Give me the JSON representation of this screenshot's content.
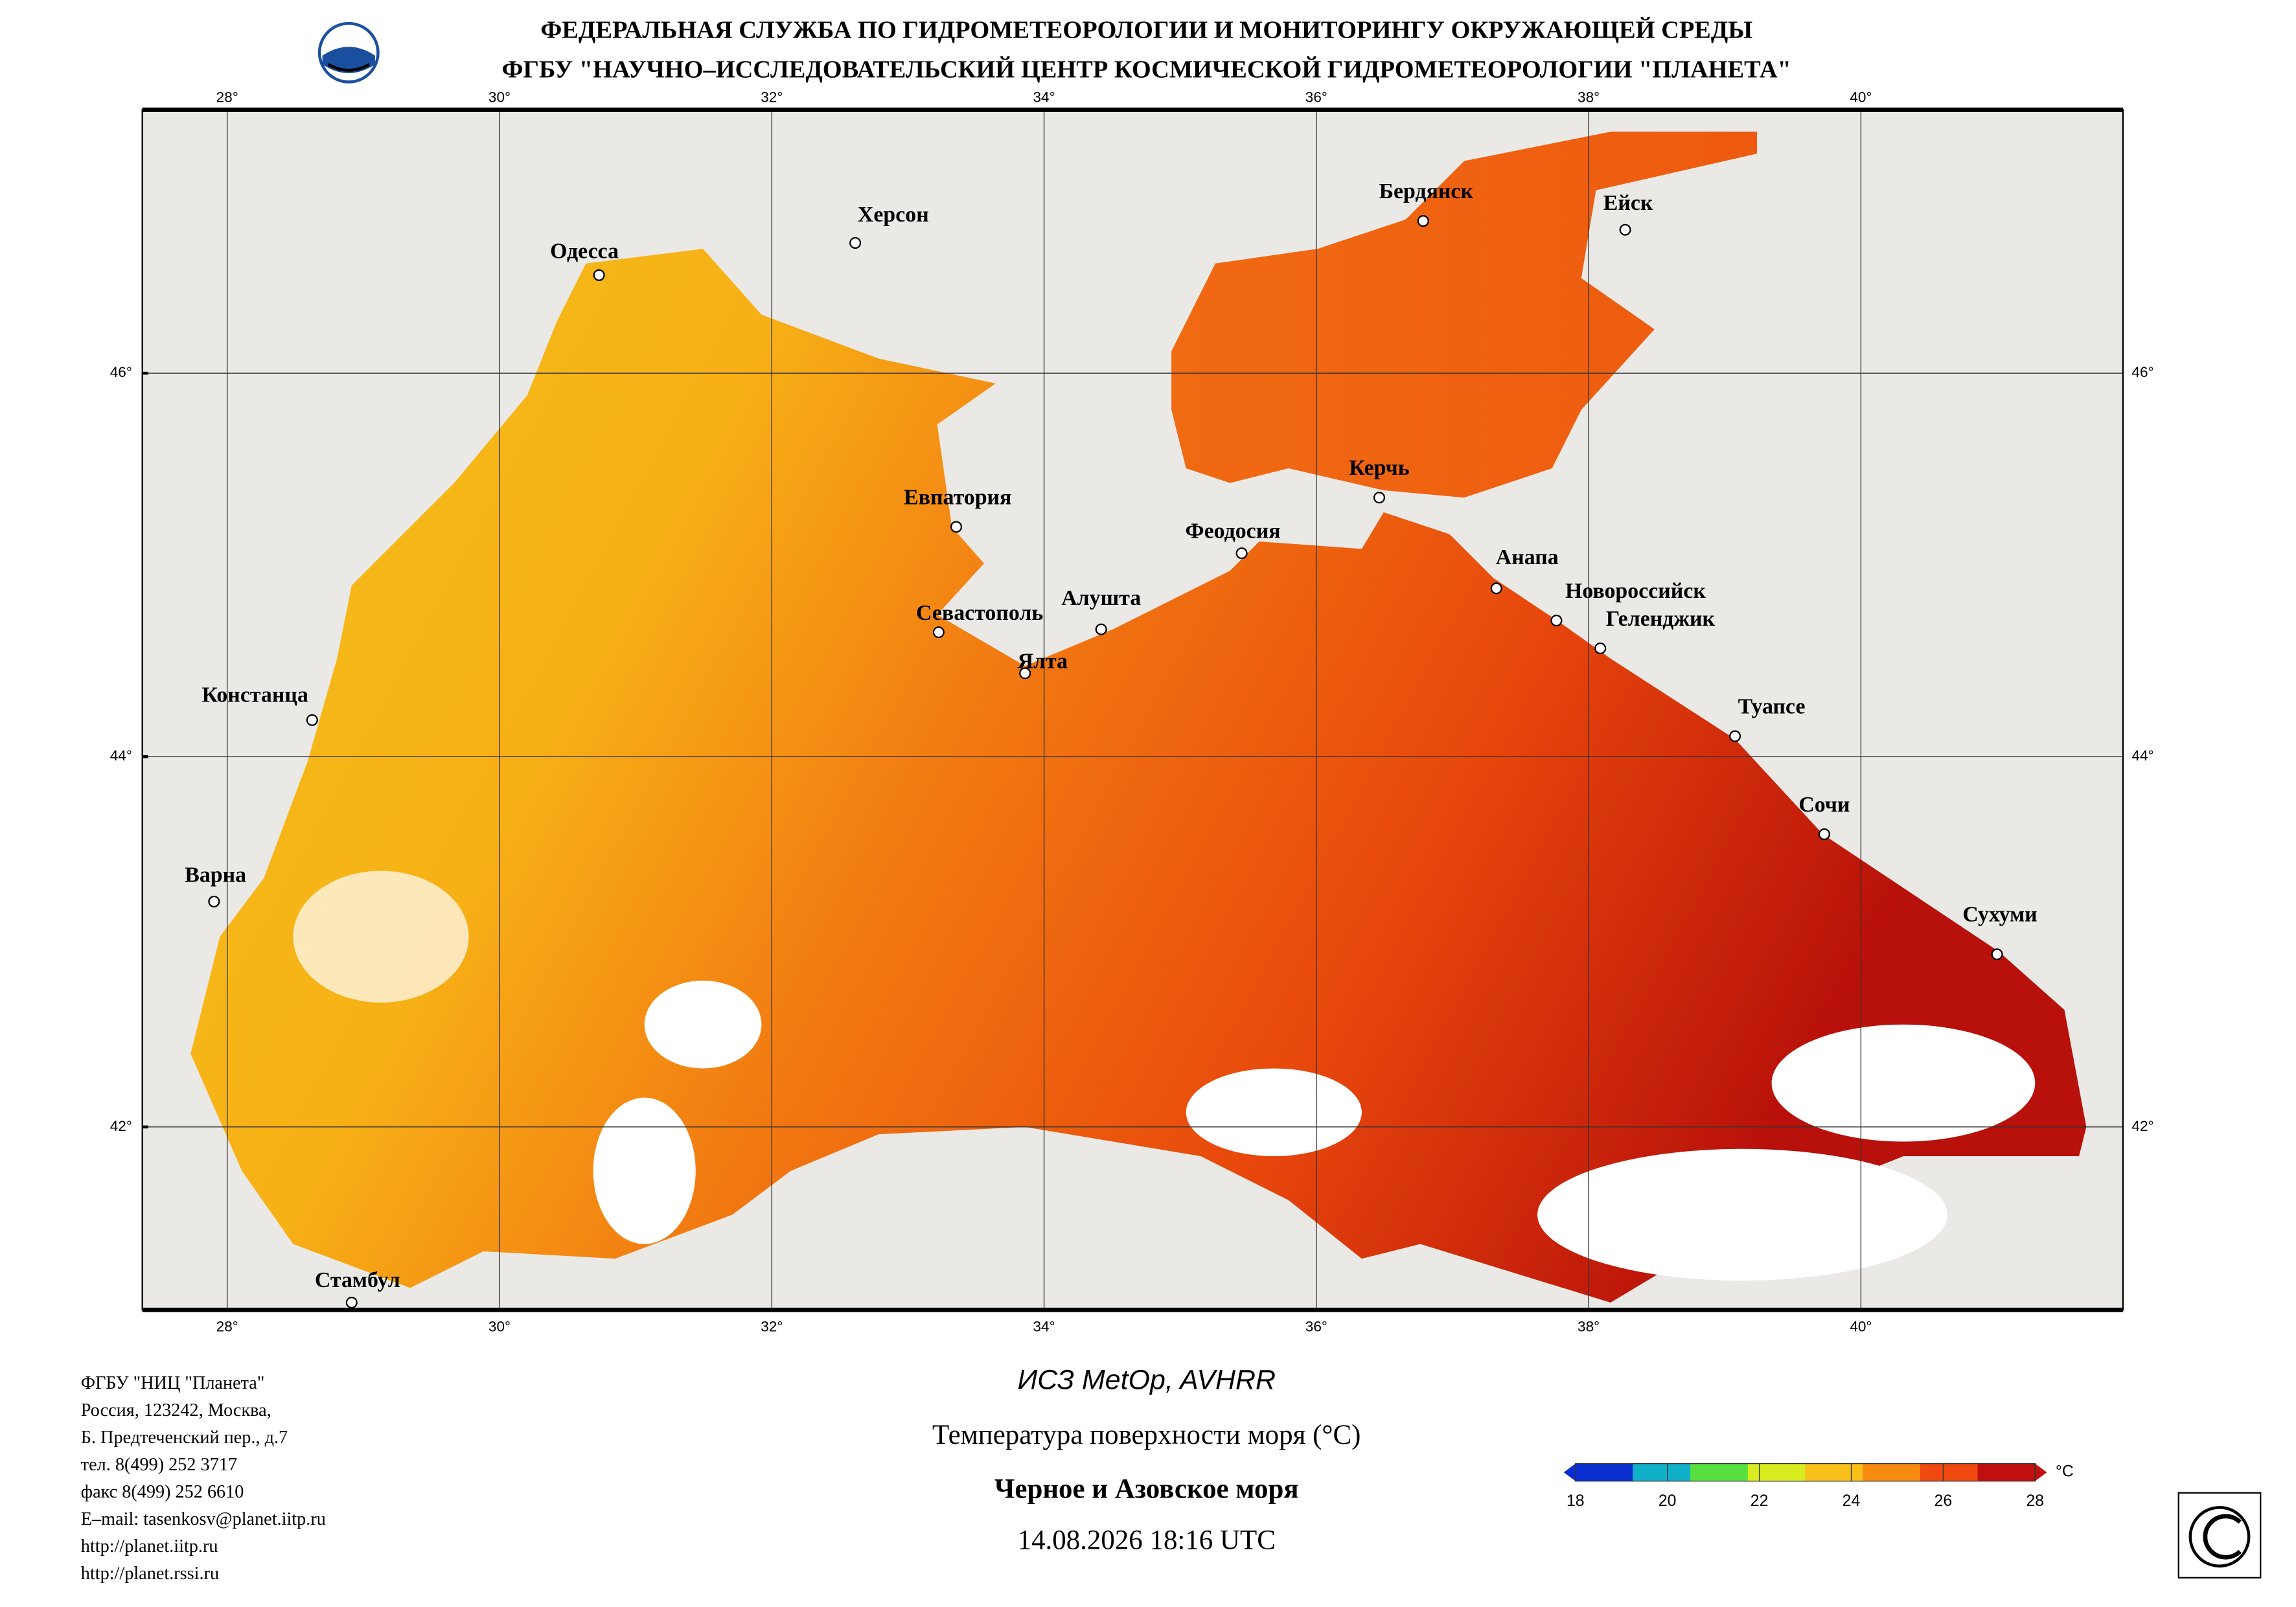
{
  "header": {
    "line1": "ФЕДЕРАЛЬНАЯ СЛУЖБА ПО ГИДРОМЕТЕОРОЛОГИИ И МОНИТОРИНГУ ОКРУЖАЮЩЕЙ СРЕДЫ",
    "line2": "ФГБУ \"НАУЧНО–ИССЛЕДОВАТЕЛЬСКИЙ ЦЕНТР КОСМИЧЕСКОЙ ГИДРОМЕТЕОРОЛОГИИ \"ПЛАНЕТА\""
  },
  "map": {
    "lon_labels": [
      "28°",
      "30°",
      "32°",
      "34°",
      "36°",
      "38°",
      "40°"
    ],
    "lat_labels": [
      "46°",
      "44°",
      "42°"
    ],
    "cities": [
      "Одесса",
      "Херсон",
      "Бердянск",
      "Ейск",
      "Евпатория",
      "Керчь",
      "Феодосия",
      "Анапа",
      "Новороссийск",
      "Геленджик",
      "Севастополь",
      "Алушта",
      "Ялта",
      "Констанца",
      "Варна",
      "Стамбул",
      "Туапсе",
      "Сочи",
      "Сухуми"
    ]
  },
  "product": {
    "satellite": "ИСЗ MetOp, AVHRR",
    "parameter": "Температура поверхности моря (°C)",
    "region": "Черное и Азовское моря",
    "datetime": "14.08.2026 18:16 UTC"
  },
  "colorbar": {
    "ticks": [
      18,
      20,
      22,
      24,
      26,
      28
    ],
    "unit": "°C"
  },
  "contacts": [
    "ФГБУ \"НИЦ \"Планета\"",
    "Россия, 123242, Москва,",
    "Б. Предтеченский пер., д.7",
    "тел. 8(499) 252 3717",
    "факс 8(499) 252 6610",
    "E–mail: tasenkosv@planet.iitp.ru",
    "http://planet.iitp.ru",
    "http://planet.rssi.ru"
  ]
}
